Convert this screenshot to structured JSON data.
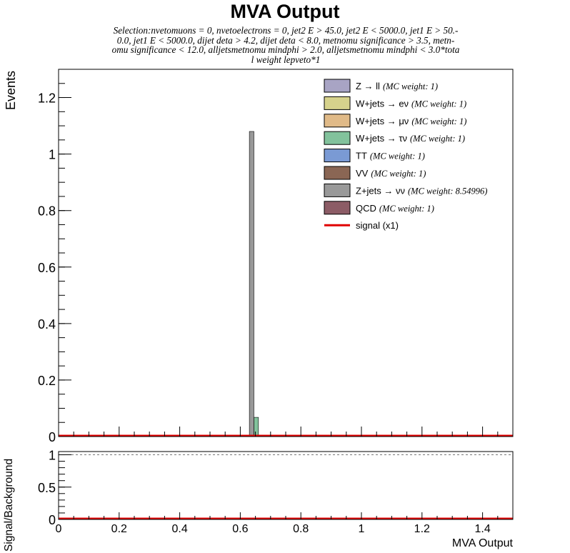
{
  "chart_data": [
    {
      "type": "bar",
      "title": "MVA Output",
      "subtitle_lines": [
        "Selection:nvetomuons = 0, nvetoelectrons = 0, jet2 E > 45.0, jet2 E < 5000.0, jet1 E > 50.-",
        "0.0, jet1 E < 5000.0, dijet deta > 4.2, dijet deta < 8.0, metnomu significance > 3.5, metn-",
        "omu significance < 12.0, alljetsmetnomu mindphi > 2.0, alljetsmetnomu mindphi < 3.0*tota",
        "l weight lepveto*1"
      ],
      "xlabel": "",
      "ylabel": "Events",
      "xlim": [
        0,
        1.5
      ],
      "ylim": [
        0,
        1.3
      ],
      "yticks": [
        0,
        0.2,
        0.4,
        0.6,
        0.8,
        1,
        1.2
      ],
      "ytick_labels": [
        "0",
        "0.2",
        "0.4",
        "0.6",
        "0.8",
        "1",
        "1.2"
      ],
      "bin_width": 0.015,
      "stacked": true,
      "legend_position": "top-right",
      "legend": [
        {
          "label": "Z → ll",
          "weight": "(MC weight: 1)",
          "color": "#a8a4c4",
          "kind": "box"
        },
        {
          "label": "W+jets → eν",
          "weight": "(MC weight: 1)",
          "color": "#d6d28c",
          "kind": "box"
        },
        {
          "label": "W+jets → μν",
          "weight": "(MC weight: 1)",
          "color": "#e0ba88",
          "kind": "box"
        },
        {
          "label": "W+jets → τν",
          "weight": "(MC weight: 1)",
          "color": "#82c29c",
          "kind": "box"
        },
        {
          "label": "TT",
          "weight": "(MC weight: 1)",
          "color": "#7a9ad4",
          "kind": "box"
        },
        {
          "label": "VV",
          "weight": "(MC weight: 1)",
          "color": "#8a6654",
          "kind": "box"
        },
        {
          "label": "Z+jets → νν",
          "weight": "(MC weight: 8.54996)",
          "color": "#999999",
          "kind": "box"
        },
        {
          "label": "QCD",
          "weight": "(MC weight: 1)",
          "color": "#8c5c66",
          "kind": "box"
        },
        {
          "label": "signal (x1)",
          "weight": "",
          "color": "#e00000",
          "kind": "line"
        }
      ],
      "series": [
        {
          "name": "W+jets → μν",
          "color": "#e0ba88",
          "bins": [
            [
              0.615,
              0.003
            ],
            [
              0.63,
              0.005
            ]
          ]
        },
        {
          "name": "W+jets → τν",
          "color": "#82c29c",
          "bins": [
            [
              0.645,
              0.068
            ]
          ]
        },
        {
          "name": "Z+jets → νν",
          "color": "#999999",
          "bins": [
            [
              0.63,
              1.075
            ]
          ]
        }
      ],
      "signal": {
        "name": "signal (x1)",
        "color": "#e00000",
        "value": 0
      }
    },
    {
      "type": "line",
      "xlabel": "MVA Output",
      "ylabel": "Signal/Background",
      "xlim": [
        0,
        1.5
      ],
      "ylim": [
        0,
        1.05
      ],
      "yticks": [
        0,
        0.5,
        1
      ],
      "ytick_labels": [
        "0",
        "0.5",
        "1"
      ],
      "xticks": [
        0,
        0.2,
        0.4,
        0.6,
        0.8,
        1,
        1.2,
        1.4
      ],
      "xtick_labels": [
        "0",
        "0.2",
        "0.4",
        "0.6",
        "0.8",
        "1",
        "1.2",
        "1.4"
      ],
      "reference_line": 1,
      "series": [
        {
          "name": "ratio",
          "color": "#e00000",
          "value": 0
        }
      ]
    }
  ]
}
